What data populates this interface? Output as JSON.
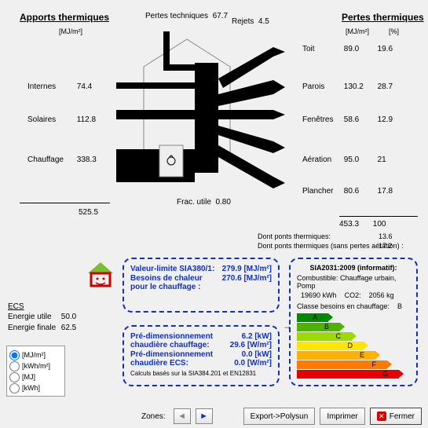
{
  "headers": {
    "apports": "Apports thermiques",
    "pertes_tech_label": "Pertes techniques",
    "pertes_tech_value": "67.7",
    "rejets_label": "Rejets",
    "rejets_value": "4.5",
    "pertes": "Pertes thermiques",
    "unit_mj": "[MJ/m²]",
    "unit_pct": "[%]"
  },
  "apports": {
    "internes": {
      "label": "Internes",
      "value": "74.4"
    },
    "solaires": {
      "label": "Solaires",
      "value": "112.8"
    },
    "chauffage": {
      "label": "Chauffage",
      "value": "338.3"
    },
    "total": "525.5"
  },
  "pertes": {
    "toit": {
      "label": "Toit",
      "value": "89.0",
      "pct": "19.6"
    },
    "parois": {
      "label": "Parois",
      "value": "130.2",
      "pct": "28.7"
    },
    "fenetres": {
      "label": "Fenêtres",
      "value": "58.6",
      "pct": "12.9"
    },
    "aeration": {
      "label": "Aération",
      "value": "95.0",
      "pct": "21"
    },
    "plancher": {
      "label": "Plancher",
      "value": "80.6",
      "pct": "17.8"
    },
    "total": {
      "value": "453.3",
      "pct": "100"
    },
    "dont_ponts": {
      "label": "Dont ponts thermiques:",
      "value": "13.6"
    },
    "dont_ponts2": {
      "label": "Dont ponts thermiques (sans pertes aération) :",
      "value": "17.2"
    }
  },
  "frac_utile": {
    "label": "Frac. utile",
    "value": "0.80"
  },
  "ecs": {
    "title": "ECS",
    "utile": {
      "label": "Energie utile",
      "value": "50.0"
    },
    "finale": {
      "label": "Energie finale",
      "value": "62.5"
    }
  },
  "radios": {
    "mj_m2": "[MJ/m²]",
    "kwh_m2": "[kWh/m²]",
    "mj": "[MJ]",
    "kwh": "[kWh]",
    "selected": "mj_m2"
  },
  "box1": {
    "valeur_limite_label": "Valeur-limite SIA380/1:",
    "valeur_limite_value": "279.9 [MJ/m²]",
    "besoins_label": "Besoins de chaleur pour le chauffage :",
    "besoins_value": "270.6 [MJ/m²]"
  },
  "box2": {
    "predim_chauff_label": "Pré-dimensionnement chaudière chauffage:",
    "predim_chauff_kw": "6.2 [kW]",
    "predim_chauff_wm2": "29.6 [W/m²]",
    "predim_ecs_label": "Pré-dimensionnement chaudière ECS:",
    "predim_ecs_kw": "0.0 [kW]",
    "predim_ecs_wm2": "0.0 [W/m²]",
    "note": "Calculs basés sur la SIA384.201 et EN12831"
  },
  "box3": {
    "title": "SIA2031:2009 (informatif):",
    "combustible_label": "Combustible:",
    "combustible_value": "Chauffage urbain, Pomp",
    "kwh_label": "kWh",
    "kwh_value": "19690",
    "co2_label": "CO2:",
    "co2_value": "2056 kg",
    "classe_label": "Classe besoins en chauffage:",
    "classe_value": "B",
    "rating_letters": [
      "A",
      "B",
      "C",
      "D",
      "E",
      "F",
      "G"
    ],
    "rating_colors": [
      "#008a00",
      "#4db300",
      "#9ed900",
      "#ffe600",
      "#ffb000",
      "#ff7a00",
      "#e80000"
    ],
    "rating_widths": [
      40,
      55,
      70,
      85,
      100,
      115,
      130
    ],
    "arrow_class": 1
  },
  "buttons": {
    "zones_label": "Zones:",
    "export": "Export->Polysun",
    "imprimer": "Imprimer",
    "fermer": "Fermer"
  }
}
